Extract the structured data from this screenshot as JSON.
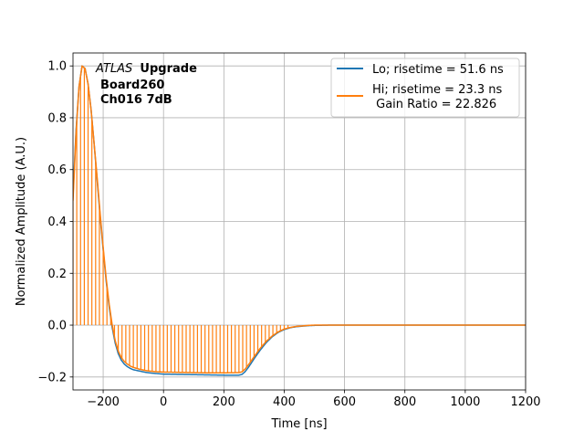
{
  "chart_data": {
    "type": "line",
    "title": "",
    "xlabel": "Time [ns]",
    "ylabel": "Normalized Amplitude (A.U.)",
    "xlim": [
      -300,
      1200
    ],
    "ylim": [
      -0.25,
      1.05
    ],
    "xticks": [
      -200,
      0,
      200,
      400,
      600,
      800,
      1000,
      1200
    ],
    "xtick_labels": [
      "−200",
      "0",
      "200",
      "400",
      "600",
      "800",
      "1000",
      "1200"
    ],
    "yticks": [
      -0.2,
      0.0,
      0.2,
      0.4,
      0.6,
      0.8,
      1.0
    ],
    "ytick_labels": [
      "−0.2",
      "0.0",
      "0.2",
      "0.4",
      "0.6",
      "0.8",
      "1.0"
    ],
    "grid": true,
    "legend_position": "top-right",
    "annotation": {
      "italic": "ATLAS",
      "bold": "Upgrade",
      "line2": "Board260",
      "line3": "Ch016 7dB"
    },
    "series": [
      {
        "name": "Lo; risetime = 51.6 ns",
        "color": "#1f77b4",
        "x": [
          -300,
          -290,
          -280,
          -270,
          -260,
          -250,
          -240,
          -230,
          -220,
          -210,
          -200,
          -190,
          -180,
          -170,
          -160,
          -150,
          -140,
          -130,
          -120,
          -110,
          -100,
          -80,
          -60,
          -40,
          -20,
          0,
          50,
          100,
          150,
          200,
          250,
          260,
          270,
          280,
          290,
          300,
          320,
          340,
          360,
          380,
          400,
          420,
          440,
          460,
          480,
          500,
          550,
          600,
          700,
          800,
          900,
          1000,
          1100,
          1200
        ],
        "y": [
          0.5,
          0.75,
          0.92,
          1.0,
          0.99,
          0.93,
          0.83,
          0.7,
          0.56,
          0.42,
          0.29,
          0.17,
          0.07,
          -0.01,
          -0.07,
          -0.11,
          -0.135,
          -0.15,
          -0.16,
          -0.167,
          -0.172,
          -0.177,
          -0.182,
          -0.185,
          -0.187,
          -0.189,
          -0.19,
          -0.191,
          -0.192,
          -0.193,
          -0.193,
          -0.19,
          -0.18,
          -0.165,
          -0.148,
          -0.13,
          -0.097,
          -0.068,
          -0.045,
          -0.028,
          -0.017,
          -0.01,
          -0.006,
          -0.004,
          -0.002,
          -0.001,
          0.0,
          0.0,
          0.0,
          0.0,
          0.0,
          0.0,
          0.0,
          0.0
        ]
      },
      {
        "name": "Hi; risetime = 23.3 ns",
        "name_line2": " Gain Ratio = 22.826",
        "color": "#ff7f0e",
        "x": [
          -300,
          -290,
          -280,
          -270,
          -260,
          -250,
          -240,
          -230,
          -220,
          -210,
          -200,
          -190,
          -180,
          -170,
          -160,
          -150,
          -140,
          -130,
          -120,
          -110,
          -100,
          -80,
          -60,
          -40,
          -20,
          0,
          50,
          100,
          150,
          200,
          250,
          260,
          270,
          280,
          290,
          300,
          320,
          340,
          360,
          380,
          400,
          420,
          440,
          460,
          480,
          500,
          550,
          600,
          700,
          800,
          900,
          1000,
          1100,
          1200
        ],
        "y": [
          0.48,
          0.74,
          0.92,
          1.0,
          0.99,
          0.93,
          0.83,
          0.7,
          0.57,
          0.43,
          0.3,
          0.18,
          0.08,
          0.0,
          -0.06,
          -0.1,
          -0.125,
          -0.14,
          -0.15,
          -0.158,
          -0.163,
          -0.17,
          -0.175,
          -0.178,
          -0.18,
          -0.181,
          -0.182,
          -0.183,
          -0.184,
          -0.184,
          -0.183,
          -0.18,
          -0.17,
          -0.155,
          -0.139,
          -0.122,
          -0.09,
          -0.063,
          -0.042,
          -0.026,
          -0.015,
          -0.009,
          -0.005,
          -0.003,
          -0.001,
          0.0,
          0.0,
          0.0,
          0.0,
          0.0,
          0.0,
          0.0,
          0.0,
          0.0
        ]
      }
    ]
  }
}
